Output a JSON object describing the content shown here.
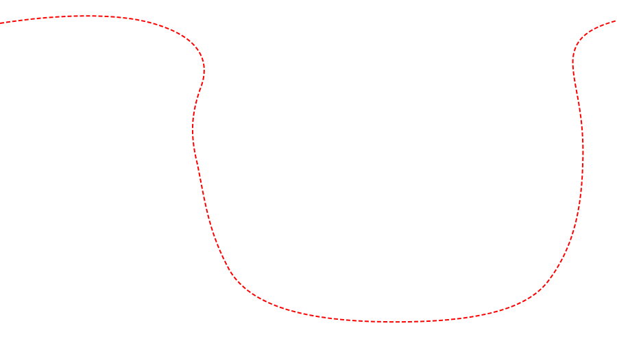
{
  "figure": {
    "stroke_color": "#ff0000",
    "line_style": "dashed",
    "shape": "u-shaped-curve"
  }
}
